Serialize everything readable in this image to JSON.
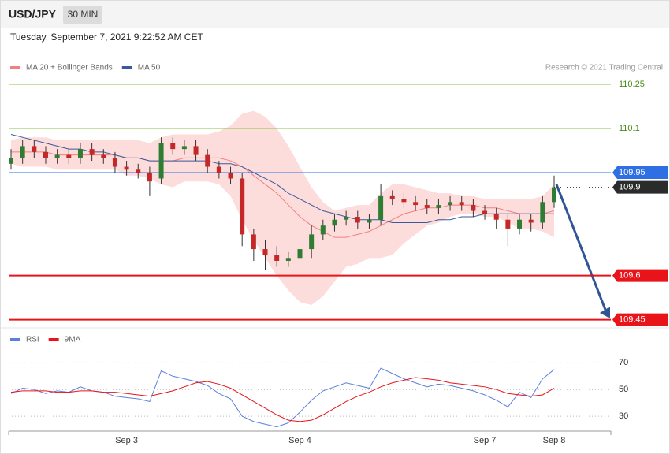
{
  "header": {
    "symbol": "USD/JPY",
    "interval": "30 MIN"
  },
  "timestamp": "Tuesday, September 7, 2021 9:22:52 AM CET",
  "copyright": "Research © 2021 Trading Central",
  "chart_data": [
    {
      "type": "candlestick",
      "open": [
        109.98,
        110.0,
        110.04,
        110.02,
        110.0,
        110.01,
        110.0,
        110.03,
        110.01,
        110.0,
        109.97,
        109.96,
        109.95,
        109.93,
        110.05,
        110.03,
        110.04,
        110.01,
        109.97,
        109.95,
        109.93,
        109.74,
        109.69,
        109.67,
        109.65,
        109.66,
        109.69,
        109.74,
        109.77,
        109.79,
        109.8,
        109.78,
        109.79,
        109.87,
        109.86,
        109.85,
        109.84,
        109.83,
        109.84,
        109.85,
        109.84,
        109.82,
        109.81,
        109.79,
        109.76,
        109.79,
        109.78,
        109.85
      ],
      "high": [
        110.03,
        110.06,
        110.06,
        110.04,
        110.03,
        110.03,
        110.05,
        110.05,
        110.03,
        110.02,
        109.99,
        109.98,
        109.97,
        110.07,
        110.07,
        110.06,
        110.06,
        110.03,
        109.99,
        109.97,
        109.95,
        109.76,
        109.72,
        109.7,
        109.68,
        109.71,
        109.77,
        109.79,
        109.81,
        109.82,
        109.82,
        109.81,
        109.91,
        109.89,
        109.88,
        109.87,
        109.86,
        109.86,
        109.87,
        109.87,
        109.86,
        109.84,
        109.83,
        109.81,
        109.81,
        109.81,
        109.87,
        109.94
      ],
      "low": [
        109.96,
        109.98,
        110.0,
        109.98,
        109.98,
        109.98,
        109.98,
        109.99,
        109.98,
        109.95,
        109.94,
        109.93,
        109.87,
        109.91,
        110.01,
        110.01,
        109.99,
        109.95,
        109.93,
        109.91,
        109.7,
        109.65,
        109.62,
        109.63,
        109.63,
        109.64,
        109.66,
        109.72,
        109.75,
        109.77,
        109.76,
        109.76,
        109.77,
        109.84,
        109.83,
        109.82,
        109.81,
        109.81,
        109.82,
        109.82,
        109.8,
        109.79,
        109.76,
        109.7,
        109.74,
        109.75,
        109.76,
        109.83
      ],
      "close": [
        110.0,
        110.04,
        110.02,
        110.0,
        110.01,
        110.0,
        110.03,
        110.01,
        110.0,
        109.97,
        109.96,
        109.95,
        109.92,
        110.05,
        110.03,
        110.04,
        110.01,
        109.97,
        109.95,
        109.93,
        109.74,
        109.69,
        109.67,
        109.65,
        109.66,
        109.69,
        109.74,
        109.77,
        109.79,
        109.8,
        109.78,
        109.79,
        109.87,
        109.86,
        109.85,
        109.84,
        109.83,
        109.84,
        109.85,
        109.84,
        109.82,
        109.81,
        109.79,
        109.76,
        109.79,
        109.78,
        109.85,
        109.9
      ],
      "up_color": "#2e7d32",
      "down_color": "#c62828",
      "series": [
        {
          "name": "MA 20 + Bollinger Bands",
          "color": "#f28080",
          "band_color": "#fdd3d3",
          "values": [
            110.02,
            110.02,
            110.02,
            110.02,
            110.01,
            110.01,
            110.01,
            110.01,
            110.01,
            110.01,
            110.0,
            110.0,
            109.99,
            109.99,
            109.99,
            110.0,
            110.0,
            110.0,
            110.0,
            109.99,
            109.97,
            109.94,
            109.91,
            109.88,
            109.84,
            109.8,
            109.77,
            109.75,
            109.73,
            109.73,
            109.74,
            109.75,
            109.77,
            109.79,
            109.81,
            109.82,
            109.83,
            109.83,
            109.84,
            109.84,
            109.84,
            109.83,
            109.83,
            109.82,
            109.81,
            109.81,
            109.81,
            109.82
          ],
          "upper": [
            110.06,
            110.07,
            110.07,
            110.07,
            110.06,
            110.06,
            110.06,
            110.06,
            110.06,
            110.06,
            110.06,
            110.06,
            110.05,
            110.07,
            110.08,
            110.08,
            110.08,
            110.08,
            110.09,
            110.11,
            110.15,
            110.16,
            110.14,
            110.1,
            110.04,
            109.97,
            109.9,
            109.85,
            109.82,
            109.83,
            109.84,
            109.84,
            109.88,
            109.91,
            109.91,
            109.9,
            109.89,
            109.88,
            109.88,
            109.87,
            109.87,
            109.86,
            109.86,
            109.86,
            109.86,
            109.86,
            109.87,
            109.91
          ],
          "lower": [
            109.98,
            109.97,
            109.97,
            109.97,
            109.96,
            109.96,
            109.96,
            109.96,
            109.96,
            109.96,
            109.94,
            109.94,
            109.93,
            109.91,
            109.9,
            109.92,
            109.92,
            109.92,
            109.91,
            109.87,
            109.79,
            109.72,
            109.66,
            109.6,
            109.55,
            109.51,
            109.5,
            109.53,
            109.58,
            109.63,
            109.64,
            109.66,
            109.66,
            109.67,
            109.71,
            109.74,
            109.77,
            109.78,
            109.8,
            109.81,
            109.81,
            109.8,
            109.8,
            109.78,
            109.76,
            109.76,
            109.75,
            109.73
          ]
        },
        {
          "name": "MA 50",
          "color": "#3a5a9b",
          "values": [
            110.08,
            110.07,
            110.06,
            110.05,
            110.04,
            110.03,
            110.03,
            110.02,
            110.02,
            110.01,
            110.0,
            110.0,
            109.99,
            109.99,
            109.99,
            109.99,
            109.99,
            109.99,
            109.98,
            109.98,
            109.97,
            109.95,
            109.93,
            109.91,
            109.88,
            109.86,
            109.84,
            109.82,
            109.81,
            109.8,
            109.79,
            109.79,
            109.79,
            109.78,
            109.78,
            109.78,
            109.78,
            109.79,
            109.79,
            109.8,
            109.8,
            109.81,
            109.81,
            109.81,
            109.81,
            109.81,
            109.81,
            109.81
          ]
        }
      ],
      "ylim": [
        109.44,
        110.28
      ],
      "levels": [
        {
          "value": 110.25,
          "color": "#8bc34a",
          "boxed": false
        },
        {
          "value": 110.1,
          "color": "#8bc34a",
          "boxed": false
        },
        {
          "value": 109.95,
          "color": "#2f6fe4",
          "boxed": true
        },
        {
          "value": 109.6,
          "color": "#e8141a",
          "boxed": true
        },
        {
          "value": 109.45,
          "color": "#e8141a",
          "boxed": true
        }
      ],
      "last_price": {
        "value": 109.9,
        "color": "#2b2b2b"
      }
    },
    {
      "type": "line",
      "categories": [
        null,
        null,
        null,
        null,
        null,
        null,
        null,
        null,
        null,
        null,
        "Sep 3",
        null,
        null,
        null,
        null,
        null,
        null,
        null,
        null,
        null,
        null,
        null,
        null,
        null,
        null,
        "Sep 4",
        null,
        null,
        null,
        null,
        null,
        null,
        null,
        null,
        null,
        null,
        null,
        null,
        null,
        null,
        null,
        "Sep 7",
        null,
        null,
        null,
        null,
        null,
        "Sep 8"
      ],
      "series": [
        {
          "name": "RSI",
          "color": "#5b7fdc",
          "values": [
            47,
            51,
            50,
            47,
            49,
            48,
            52,
            49,
            48,
            45,
            44,
            43,
            41,
            64,
            60,
            58,
            56,
            53,
            47,
            43,
            30,
            26,
            24,
            22,
            25,
            33,
            42,
            49,
            52,
            55,
            53,
            51,
            66,
            62,
            58,
            55,
            52,
            54,
            53,
            51,
            49,
            46,
            42,
            37,
            48,
            44,
            58,
            65
          ]
        },
        {
          "name": "9MA",
          "color": "#e8141a",
          "values": [
            48,
            49,
            49,
            49,
            48,
            48,
            49,
            49,
            48,
            48,
            47,
            46,
            45,
            47,
            49,
            52,
            55,
            56,
            54,
            51,
            46,
            41,
            36,
            31,
            27,
            26,
            27,
            31,
            36,
            41,
            45,
            48,
            52,
            55,
            57,
            59,
            58,
            57,
            55,
            54,
            53,
            52,
            50,
            47,
            46,
            45,
            46,
            51
          ]
        }
      ],
      "ylim": [
        20,
        95
      ],
      "yticks": [
        30,
        50,
        70
      ],
      "grid": true
    }
  ]
}
